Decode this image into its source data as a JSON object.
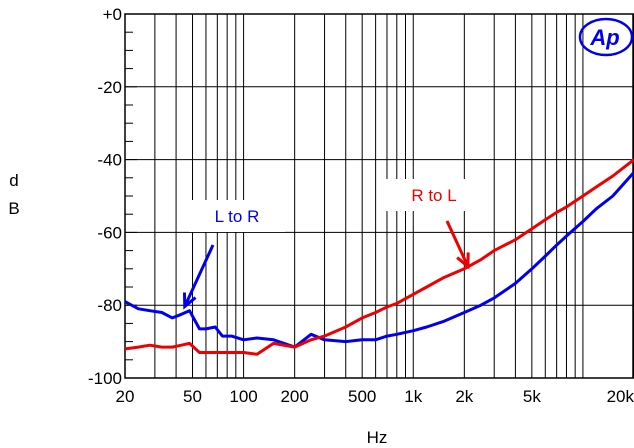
{
  "chart_data": {
    "type": "line",
    "xlabel": "Hz",
    "ylabel": "d B",
    "ylabel_lines": [
      "d",
      "B"
    ],
    "xscale": "log",
    "xlim": [
      20,
      20000
    ],
    "ylim": [
      -100,
      0
    ],
    "grid": true,
    "y_ticks": [
      {
        "value": 0,
        "label": "+0"
      },
      {
        "value": -20,
        "label": "-20"
      },
      {
        "value": -40,
        "label": "-40"
      },
      {
        "value": -60,
        "label": "-60"
      },
      {
        "value": -80,
        "label": "-80"
      },
      {
        "value": -100,
        "label": "-100"
      }
    ],
    "x_ticks": [
      {
        "value": 20,
        "label": "20"
      },
      {
        "value": 50,
        "label": "50"
      },
      {
        "value": 100,
        "label": "100"
      },
      {
        "value": 200,
        "label": "200"
      },
      {
        "value": 500,
        "label": "500"
      },
      {
        "value": 1000,
        "label": "1k"
      },
      {
        "value": 2000,
        "label": "2k"
      },
      {
        "value": 5000,
        "label": "5k"
      },
      {
        "value": 20000,
        "label": "20k"
      }
    ],
    "series": [
      {
        "color": "#0000ee",
        "x": [
          20,
          24,
          28,
          33,
          38,
          43,
          48,
          55,
          60,
          68,
          75,
          85,
          100,
          120,
          150,
          200,
          250,
          300,
          400,
          500,
          600,
          700,
          800,
          1000,
          1200,
          1500,
          2000,
          2500,
          3000,
          4000,
          5000,
          6000,
          7000,
          8000,
          10000,
          12000,
          15000,
          20000
        ],
        "y": [
          -79,
          -81,
          -81.5,
          -82,
          -83.5,
          -82.5,
          -81.5,
          -86.5,
          -86.5,
          -86,
          -88.5,
          -88.5,
          -89.5,
          -89,
          -89.5,
          -91.5,
          -88,
          -89.5,
          -90,
          -89.5,
          -89.5,
          -88.5,
          -88,
          -87,
          -86,
          -84.5,
          -82,
          -80,
          -78,
          -74,
          -70,
          -66.5,
          -63.5,
          -61,
          -57,
          -53.5,
          -50,
          -43.5
        ]
      },
      {
        "color": "#ee0000",
        "x": [
          20,
          24,
          28,
          33,
          38,
          43,
          48,
          55,
          60,
          68,
          75,
          85,
          100,
          120,
          150,
          200,
          250,
          300,
          400,
          500,
          600,
          700,
          800,
          1000,
          1200,
          1500,
          2000,
          2500,
          3000,
          4000,
          5000,
          6000,
          7000,
          8000,
          10000,
          12000,
          15000,
          20000
        ],
        "y": [
          -92,
          -91.5,
          -91,
          -91.5,
          -91.5,
          -91,
          -90.5,
          -93,
          -93,
          -93,
          -93,
          -93,
          -93,
          -93.5,
          -90.5,
          -91.5,
          -89.5,
          -88.5,
          -86,
          -83.5,
          -82,
          -80.5,
          -79.5,
          -77,
          -75,
          -72.5,
          -70,
          -67.5,
          -65,
          -62,
          -59,
          -56.5,
          -54.5,
          -53,
          -50,
          -47.5,
          -44.5,
          -40
        ]
      }
    ],
    "annotations": [
      {
        "text": "L to R",
        "color": "#0000ee",
        "points_to": [
          45,
          -82
        ]
      },
      {
        "text": "R to L",
        "color": "#ee0000",
        "points_to": [
          2100,
          -71
        ]
      }
    ],
    "logo_text": "Ap",
    "logo_color": "#0000ee"
  }
}
